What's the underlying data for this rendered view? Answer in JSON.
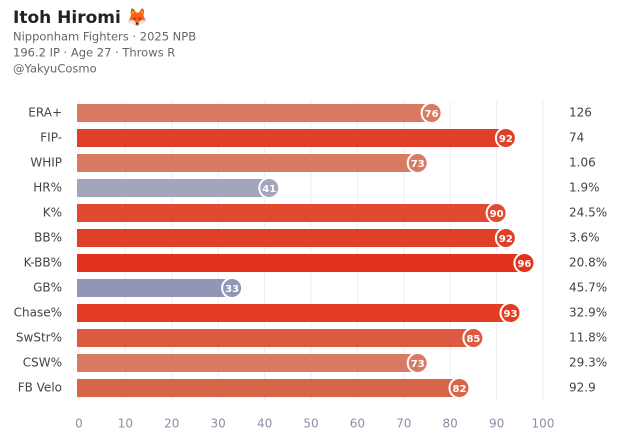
{
  "chart_data": {
    "type": "bar",
    "title": "Itoh Hiromi 🦊",
    "subtitle": [
      "Nipponham Fighters · 2025 NPB",
      "196.2 IP · Age 27 · Throws R",
      "@YakyuCosmo"
    ],
    "categories": [
      "ERA+",
      "FIP-",
      "WHIP",
      "HR%",
      "K%",
      "BB%",
      "K-BB%",
      "GB%",
      "Chase%",
      "SwStr%",
      "CSW%",
      "FB Velo"
    ],
    "values": [
      76,
      92,
      73,
      41,
      90,
      92,
      96,
      33,
      93,
      85,
      73,
      82
    ],
    "colors": [
      "#d97a62",
      "#e0402a",
      "#d97a62",
      "#a2a6ba",
      "#e24a30",
      "#e0402a",
      "#e3321c",
      "#9196b6",
      "#e23d22",
      "#db5a40",
      "#d97a62",
      "#d96548"
    ],
    "stats": [
      "126",
      "74",
      "1.06",
      "1.9%",
      "24.5%",
      "3.6%",
      "20.8%",
      "45.7%",
      "32.9%",
      "11.8%",
      "29.3%",
      "92.9"
    ],
    "xlim": [
      0,
      100
    ],
    "xticks": [
      0,
      10,
      20,
      30,
      40,
      50,
      60,
      70,
      80,
      90,
      100
    ],
    "grid": true
  }
}
